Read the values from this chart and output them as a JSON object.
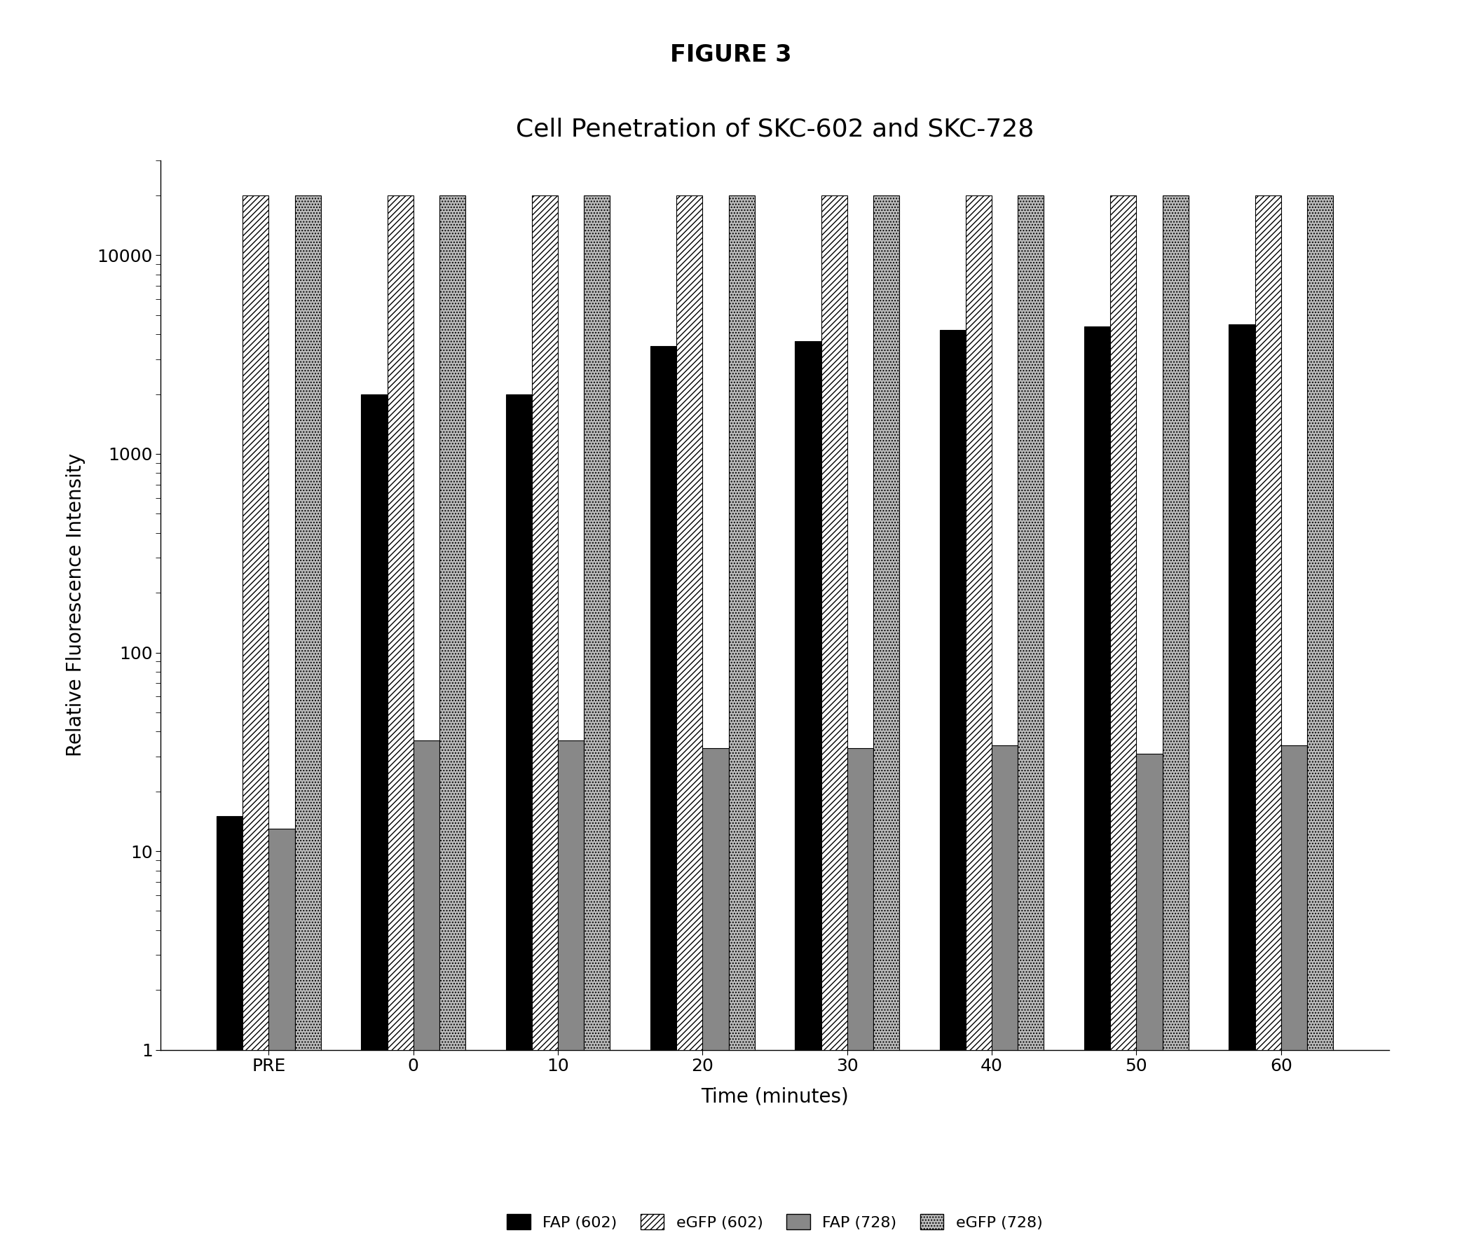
{
  "title": "Cell Penetration of SKC-602 and SKC-728",
  "figure_title": "FIGURE 3",
  "xlabel": "Time (minutes)",
  "ylabel": "Relative Fluorescence Intensity",
  "x_labels": [
    "PRE",
    "0",
    "10",
    "20",
    "30",
    "40",
    "50",
    "60"
  ],
  "series": {
    "FAP_602": [
      14,
      2000,
      2000,
      3500,
      3700,
      4200,
      4400,
      4500
    ],
    "eGFP_602": [
      20000,
      20000,
      20000,
      20000,
      20000,
      20000,
      20000,
      20000
    ],
    "FAP_728": [
      12,
      35,
      35,
      32,
      32,
      33,
      30,
      33
    ],
    "eGFP_728": [
      20000,
      20000,
      20000,
      20000,
      20000,
      20000,
      20000,
      20000
    ]
  },
  "legend_labels": [
    "FAP (602)",
    "eGFP (602)",
    "FAP (728)",
    "eGFP (728)"
  ],
  "ylim": [
    1,
    30000
  ],
  "background_color": "#ffffff",
  "bar_width": 0.18,
  "title_fontsize": 26,
  "figure_title_fontsize": 24,
  "axis_fontsize": 20,
  "tick_fontsize": 18,
  "legend_fontsize": 16
}
